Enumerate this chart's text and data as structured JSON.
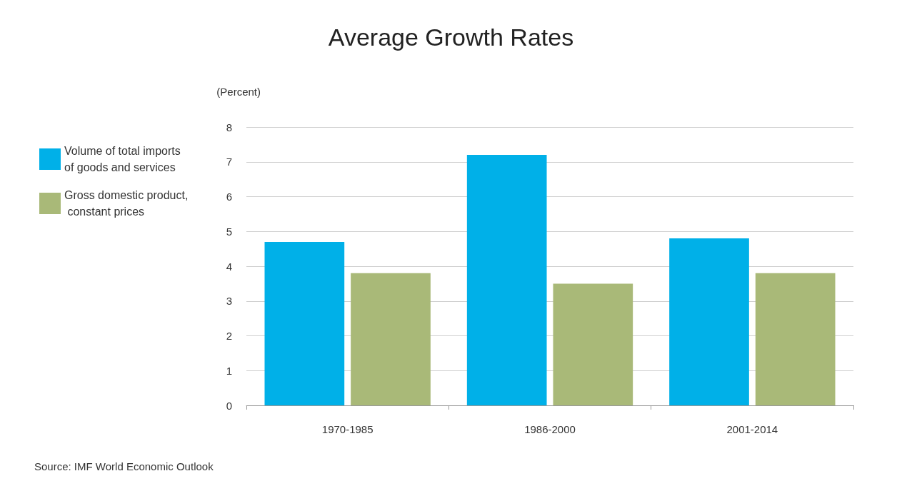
{
  "chart_data": {
    "type": "bar",
    "title": "Average Growth Rates",
    "ylabel": "(Percent)",
    "categories": [
      "1970-1985",
      "1986-2000",
      "2001-2014"
    ],
    "series": [
      {
        "name": "Volume of total imports of goods and services",
        "color": "#00b0e8",
        "values": [
          4.7,
          7.2,
          4.8
        ]
      },
      {
        "name": "Gross domestic product, constant prices",
        "color": "#a9b978",
        "values": [
          3.8,
          3.5,
          3.8
        ]
      }
    ],
    "ylim": [
      0,
      8
    ],
    "yticks": [
      0,
      1,
      2,
      3,
      4,
      5,
      6,
      7,
      8
    ],
    "grid": "y",
    "legend": "left",
    "annotations": [
      "Source: IMF World Economic Outlook"
    ]
  }
}
